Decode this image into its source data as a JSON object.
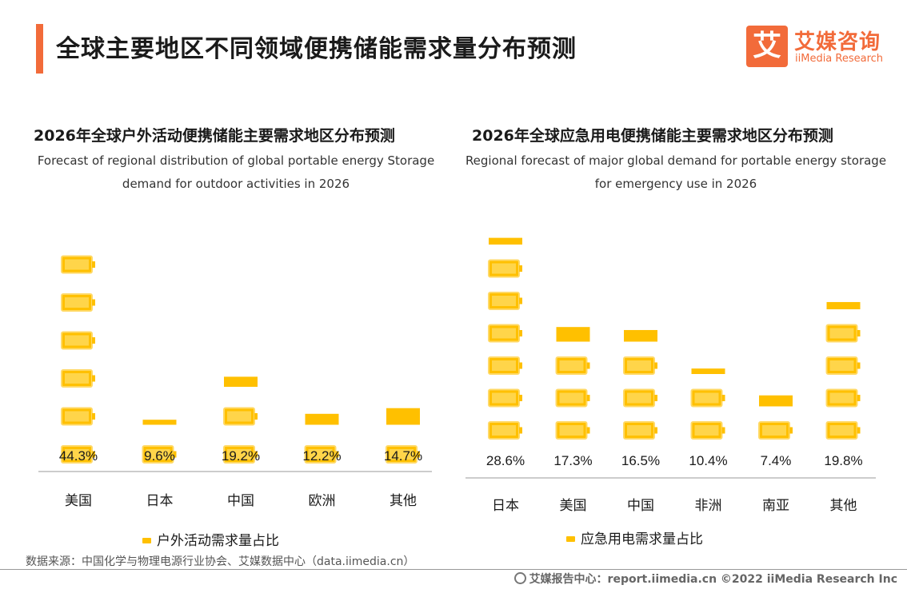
{
  "header": {
    "title": "全球主要地区不同领域便携储能需求量分布预测",
    "logo_mark": "艾",
    "logo_cn": "艾媒咨询",
    "logo_en": "iiMedia Research"
  },
  "colors": {
    "accent": "#f26b3a",
    "battery_fill": "#ffc000",
    "battery_outline": "#ffd966",
    "axis": "#999999"
  },
  "chart_data": [
    {
      "type": "bar",
      "title": "2026年全球户外活动便携储能主要需求地区分布预测",
      "subtitle_line1": "Forecast of regional distribution of global portable energy Storage",
      "subtitle_line2": "demand for outdoor activities in 2026",
      "categories": [
        "美国",
        "日本",
        "中国",
        "欧洲",
        "其他"
      ],
      "values": [
        44.3,
        9.6,
        19.2,
        12.2,
        14.7
      ],
      "value_labels": [
        "44.3%",
        "9.6%",
        "19.2%",
        "12.2%",
        "14.7%"
      ],
      "series": [
        {
          "name": "户外活动需求量占比",
          "values": [
            44.3,
            9.6,
            19.2,
            12.2,
            14.7
          ]
        }
      ],
      "legend": "bottom-center",
      "grid": false
    },
    {
      "type": "bar",
      "title": "2026年全球应急用电便携储能主要需求地区分布预测",
      "subtitle_line1": "Regional forecast of major global demand for portable energy storage",
      "subtitle_line2": "for emergency use in 2026",
      "categories": [
        "日本",
        "美国",
        "中国",
        "非洲",
        "南亚",
        "其他"
      ],
      "values": [
        28.6,
        17.3,
        16.5,
        10.4,
        7.4,
        19.8
      ],
      "value_labels": [
        "28.6%",
        "17.3%",
        "16.5%",
        "10.4%",
        "7.4%",
        "19.8%"
      ],
      "series": [
        {
          "name": "应急用电需求量占比",
          "values": [
            28.6,
            17.3,
            16.5,
            10.4,
            7.4,
            19.8
          ]
        }
      ],
      "legend": "bottom-center",
      "grid": false
    }
  ],
  "footer": {
    "source": "数据来源：中国化学与物理电源行业协会、艾媒数据中心（data.iimedia.cn）",
    "right": "艾媒报告中心：report.iimedia.cn  ©2022  iiMedia Research  Inc"
  }
}
